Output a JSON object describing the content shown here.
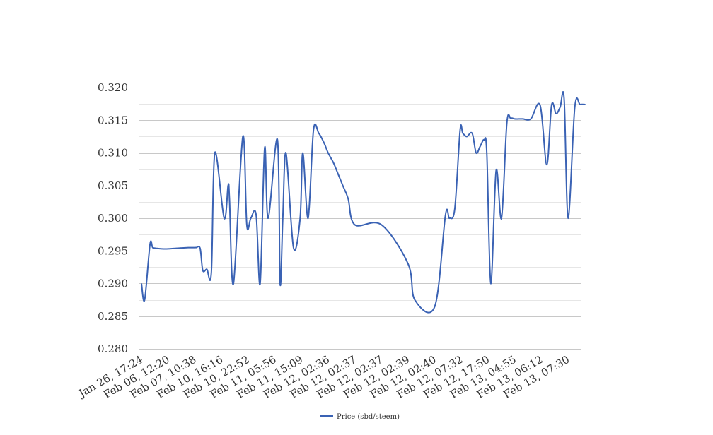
{
  "chart_data": {
    "type": "line",
    "title": "",
    "xlabel": "",
    "ylabel": "",
    "ylim": [
      0.28,
      0.32
    ],
    "y_ticks": [
      "0.280",
      "0.285",
      "0.290",
      "0.295",
      "0.300",
      "0.305",
      "0.310",
      "0.315",
      "0.320"
    ],
    "grid": true,
    "legend_position": "bottom",
    "categories": [
      "Jan 26, 17:24",
      "Feb 06, 12:20",
      "Feb 07, 10:38",
      "Feb 10, 16:16",
      "Feb 10, 22:52",
      "Feb 11, 05:56",
      "Feb 11, 15:09",
      "Feb 12, 02:36",
      "Feb 12, 02:37",
      "Feb 12, 02:37",
      "Feb 12, 02:39",
      "Feb 12, 02:40",
      "Feb 12, 07:32",
      "Feb 12, 17:50",
      "Feb 13, 04:55",
      "Feb 13, 06:12",
      "Feb 13, 07:30"
    ],
    "series": [
      {
        "name": "Price (sbd/steem)",
        "color": "#3a62b4",
        "x": [
          0,
          0.12,
          0.32,
          0.42,
          0.55,
          0.9,
          1.3,
          1.75,
          1.82,
          1.9,
          2.0,
          2.05,
          2.2,
          2.3,
          2.45,
          2.62,
          2.75,
          3.1,
          3.25,
          3.3,
          3.45,
          3.8,
          3.95,
          4.1,
          4.3,
          4.45,
          4.62,
          4.75,
          5.1,
          5.2,
          5.3,
          5.42,
          5.7,
          5.95,
          6.05,
          6.25,
          6.45,
          6.65,
          6.85,
          7.0,
          7.2,
          7.35,
          7.55,
          7.75,
          8.0,
          9.0,
          10.0,
          10.25,
          11.0,
          11.4,
          11.55,
          11.75,
          11.95,
          12.05,
          12.2,
          12.4,
          12.55,
          12.7,
          12.85,
          12.95,
          13.1,
          13.3,
          13.5,
          13.7,
          13.85,
          14.0,
          14.15,
          14.3,
          14.6,
          14.95,
          15.2,
          15.38,
          15.55,
          15.7,
          15.85,
          16.0,
          16.25,
          16.45,
          16.65
        ],
        "values": [
          0.29,
          0.2875,
          0.296,
          0.2955,
          0.2954,
          0.2953,
          0.2954,
          0.2955,
          0.2955,
          0.2955,
          0.2955,
          0.2955,
          0.2954,
          0.292,
          0.2922,
          0.2917,
          0.31,
          0.3,
          0.305,
          0.303,
          0.29,
          0.3125,
          0.299,
          0.3,
          0.3005,
          0.29,
          0.3108,
          0.3,
          0.312,
          0.29,
          0.3,
          0.31,
          0.2955,
          0.3,
          0.31,
          0.3,
          0.3135,
          0.313,
          0.3115,
          0.31,
          0.3085,
          0.307,
          0.305,
          0.303,
          0.299,
          0.299,
          0.293,
          0.2875,
          0.2865,
          0.3005,
          0.3,
          0.3015,
          0.3135,
          0.313,
          0.3125,
          0.313,
          0.31,
          0.311,
          0.312,
          0.31,
          0.29,
          0.3073,
          0.3,
          0.3145,
          0.3153,
          0.3152,
          0.3152,
          0.3152,
          0.3152,
          0.3173,
          0.3082,
          0.3173,
          0.316,
          0.317,
          0.3183,
          0.3,
          0.317,
          0.3174,
          0.3174
        ]
      }
    ]
  }
}
